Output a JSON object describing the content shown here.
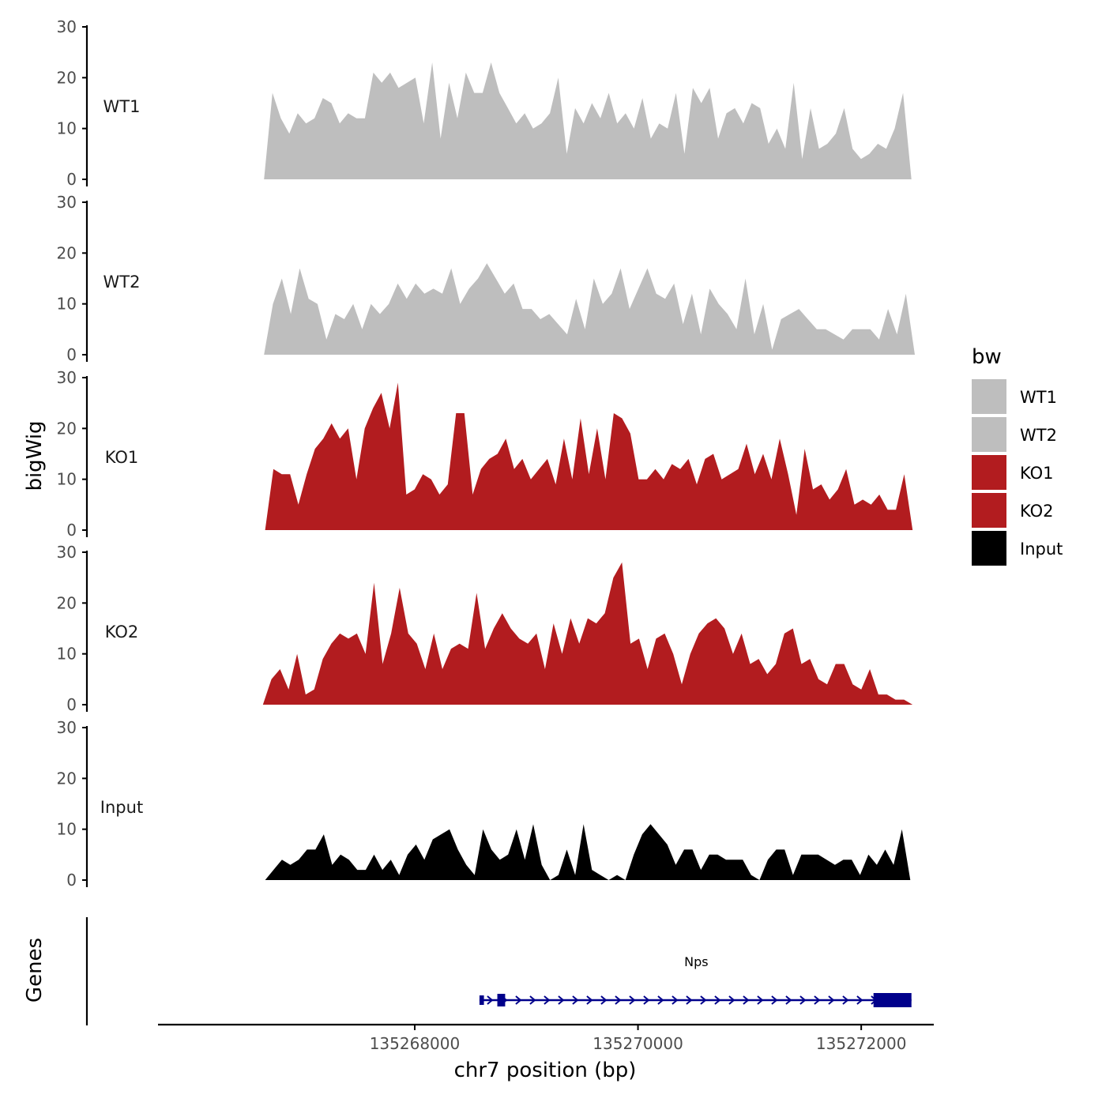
{
  "chart_data": {
    "type": "area",
    "title": "",
    "xlabel": "chr7 position (bp)",
    "ylabel": "bigWig",
    "genes_label": "Genes",
    "xlim": [
      135265700,
      135272650
    ],
    "ylim": [
      0,
      30
    ],
    "y_ticks": [
      0,
      10,
      20,
      30
    ],
    "y_tick_labels": [
      "0",
      "10",
      "20",
      "30"
    ],
    "x_ticks": [
      135268000,
      135270000,
      135272000
    ],
    "x_tick_labels": [
      "135268000",
      "135270000",
      "135272000"
    ],
    "legend": {
      "title": "bw",
      "position": "right",
      "entries": [
        {
          "label": "WT1",
          "color": "#bebebe"
        },
        {
          "label": "WT2",
          "color": "#bebebe"
        },
        {
          "label": "KO1",
          "color": "#b21c1f"
        },
        {
          "label": "KO2",
          "color": "#b21c1f"
        },
        {
          "label": "Input",
          "color": "#000000"
        }
      ]
    },
    "series": [
      {
        "name": "WT1",
        "color": "#bebebe",
        "x_start": 135266650,
        "x_end": 135272450,
        "values": [
          0,
          17,
          12,
          9,
          13,
          11,
          12,
          16,
          15,
          11,
          13,
          12,
          12,
          21,
          19,
          21,
          18,
          19,
          20,
          11,
          23,
          8,
          19,
          12,
          21,
          17,
          17,
          23,
          17,
          14,
          11,
          13,
          10,
          11,
          13,
          20,
          5,
          14,
          11,
          15,
          12,
          17,
          11,
          13,
          10,
          16,
          8,
          11,
          10,
          17,
          5,
          18,
          15,
          18,
          8,
          13,
          14,
          11,
          15,
          14,
          7,
          10,
          6,
          19,
          4,
          14,
          6,
          7,
          9,
          14,
          6,
          4,
          5,
          7,
          6,
          10,
          17,
          0
        ]
      },
      {
        "name": "WT2",
        "color": "#bebebe",
        "x_start": 135266650,
        "x_end": 135272480,
        "values": [
          0,
          10,
          15,
          8,
          17,
          11,
          10,
          3,
          8,
          7,
          10,
          5,
          10,
          8,
          10,
          14,
          11,
          14,
          12,
          13,
          12,
          17,
          10,
          13,
          15,
          18,
          15,
          12,
          14,
          9,
          9,
          7,
          8,
          6,
          4,
          11,
          5,
          15,
          10,
          12,
          17,
          9,
          13,
          17,
          12,
          11,
          14,
          6,
          12,
          4,
          13,
          10,
          8,
          5,
          15,
          4,
          10,
          1,
          7,
          8,
          9,
          7,
          5,
          5,
          4,
          3,
          5,
          5,
          5,
          3,
          9,
          4,
          12,
          0
        ]
      },
      {
        "name": "KO1",
        "color": "#b21c1f",
        "x_start": 135266660,
        "x_end": 135272460,
        "values": [
          0,
          12,
          11,
          11,
          5,
          11,
          16,
          18,
          21,
          18,
          20,
          10,
          20,
          24,
          27,
          20,
          29,
          7,
          8,
          11,
          10,
          7,
          9,
          23,
          23,
          7,
          12,
          14,
          15,
          18,
          12,
          14,
          10,
          12,
          14,
          9,
          18,
          10,
          22,
          11,
          20,
          10,
          23,
          22,
          19,
          10,
          10,
          12,
          10,
          13,
          12,
          14,
          9,
          14,
          15,
          10,
          11,
          12,
          17,
          11,
          15,
          10,
          18,
          11,
          3,
          16,
          8,
          9,
          6,
          8,
          12,
          5,
          6,
          5,
          7,
          4,
          4,
          11,
          0
        ]
      },
      {
        "name": "KO2",
        "color": "#b21c1f",
        "x_start": 135266640,
        "x_end": 135272460,
        "values": [
          0,
          5,
          7,
          3,
          10,
          2,
          3,
          9,
          12,
          14,
          13,
          14,
          10,
          24,
          8,
          14,
          23,
          14,
          12,
          7,
          14,
          7,
          11,
          12,
          11,
          22,
          11,
          15,
          18,
          15,
          13,
          12,
          14,
          7,
          16,
          10,
          17,
          12,
          17,
          16,
          18,
          25,
          28,
          12,
          13,
          7,
          13,
          14,
          10,
          4,
          10,
          14,
          16,
          17,
          15,
          10,
          14,
          8,
          9,
          6,
          8,
          14,
          15,
          8,
          9,
          5,
          4,
          8,
          8,
          4,
          3,
          7,
          2,
          2,
          1,
          1,
          0
        ]
      },
      {
        "name": "Input",
        "color": "#000000",
        "x_start": 135266660,
        "x_end": 135272440,
        "values": [
          0,
          2,
          4,
          3,
          4,
          6,
          6,
          9,
          3,
          5,
          4,
          2,
          2,
          5,
          2,
          4,
          1,
          5,
          7,
          4,
          8,
          9,
          10,
          6,
          3,
          1,
          10,
          6,
          4,
          5,
          10,
          4,
          11,
          3,
          0,
          1,
          6,
          1,
          11,
          2,
          1,
          0,
          1,
          0,
          5,
          9,
          11,
          9,
          7,
          3,
          6,
          6,
          2,
          5,
          5,
          4,
          4,
          4,
          1,
          0,
          4,
          6,
          6,
          1,
          5,
          5,
          5,
          4,
          3,
          4,
          4,
          1,
          5,
          3,
          6,
          3,
          10,
          0
        ]
      }
    ],
    "genes": [
      {
        "name": "Nps",
        "strand": "+",
        "color": "#00008b",
        "start": 135268580,
        "end": 135272450,
        "exons": [
          [
            135268580,
            135268620
          ],
          [
            135268740,
            135268810
          ],
          [
            135272110,
            135272450
          ]
        ]
      }
    ]
  }
}
